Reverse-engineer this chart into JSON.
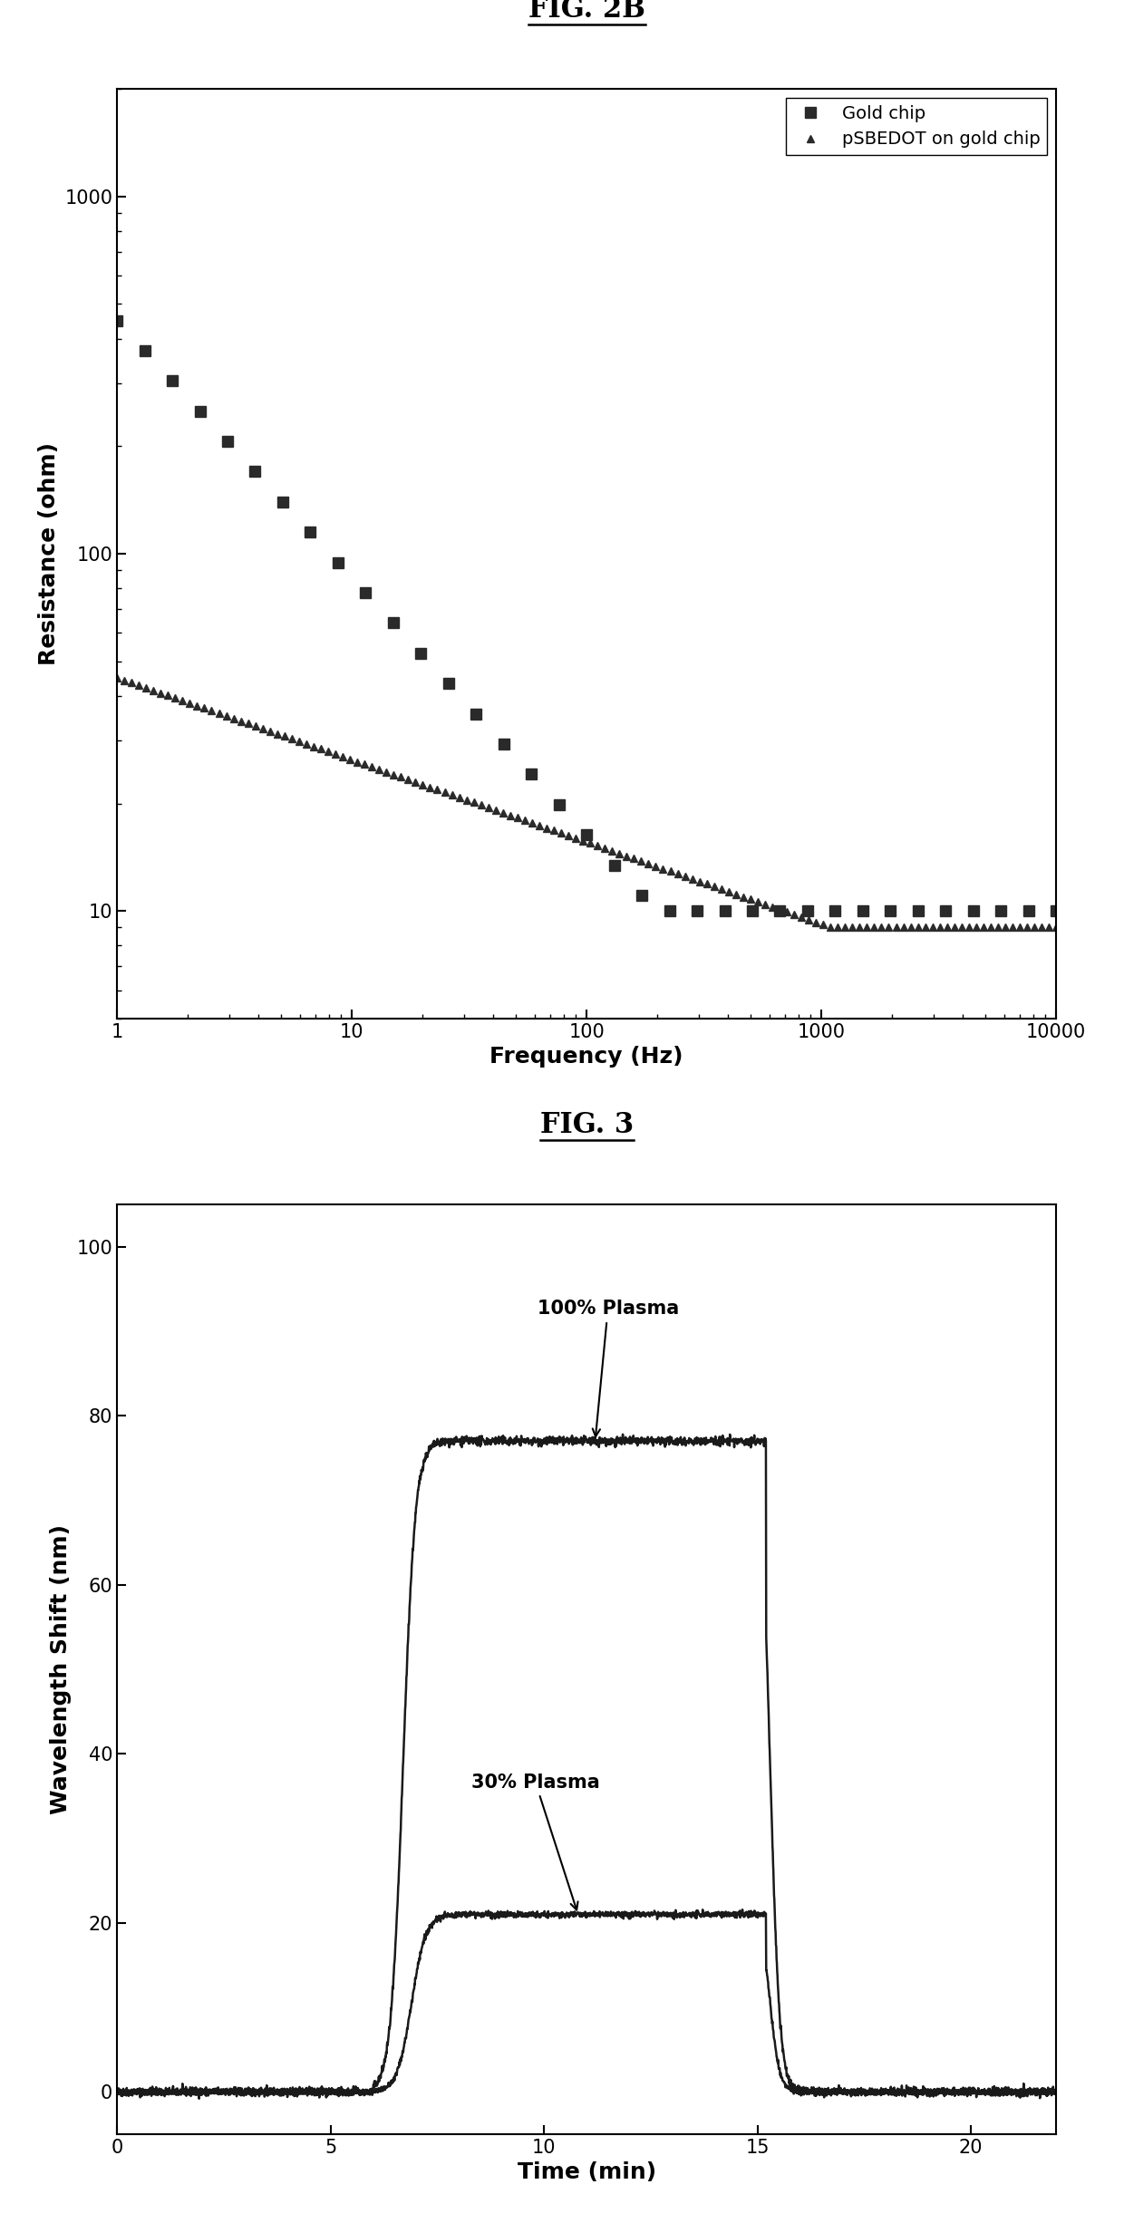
{
  "fig2b_title": "FIG. 2B",
  "fig3_title": "FIG. 3",
  "fig2b_xlabel": "Frequency (Hz)",
  "fig2b_ylabel": "Resistance (ohm)",
  "fig3_xlabel": "Time (min)",
  "fig3_ylabel": "Wavelength Shift (nm)",
  "legend_gold": "Gold chip",
  "legend_psb": "pSBEDOT on gold chip",
  "annotation_100": "100% Plasma",
  "annotation_30": "30% Plasma",
  "fig2b_xlim": [
    1,
    10000
  ],
  "fig2b_ylim": [
    5,
    2000
  ],
  "fig3_xlim": [
    0,
    22
  ],
  "fig3_ylim": [
    -5,
    105
  ],
  "fig3_yticks": [
    0,
    20,
    40,
    60,
    80,
    100
  ],
  "fig3_xticks": [
    0,
    5,
    10,
    15,
    20
  ],
  "line_color": "#1a1a1a",
  "bg_color": "#ffffff",
  "title_fontsize": 22,
  "label_fontsize": 18,
  "tick_fontsize": 15,
  "legend_fontsize": 14
}
